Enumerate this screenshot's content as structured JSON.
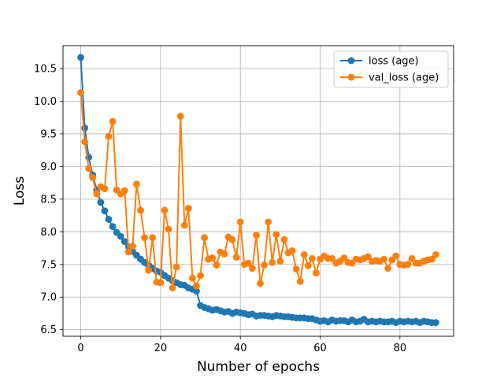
{
  "chart_data": {
    "type": "line",
    "xlabel": "Number of epochs",
    "ylabel": "Loss",
    "xlim": [
      -4.45,
      93.45
    ],
    "ylim": [
      6.4,
      10.85
    ],
    "xticks": [
      0,
      20,
      40,
      60,
      80
    ],
    "yticks": [
      6.5,
      7.0,
      7.5,
      8.0,
      8.5,
      9.0,
      9.5,
      10.0,
      10.5
    ],
    "ytick_labels": [
      "6.5",
      "7.0",
      "7.5",
      "8.0",
      "8.5",
      "9.0",
      "9.5",
      "10.0",
      "10.5"
    ],
    "grid": true,
    "legend": "top-right",
    "series": [
      {
        "name": "loss (age)",
        "color": "#1f77b4",
        "values": [
          10.67,
          9.59,
          9.14,
          8.87,
          8.64,
          8.45,
          8.32,
          8.19,
          8.08,
          7.99,
          7.93,
          7.85,
          7.77,
          7.7,
          7.64,
          7.58,
          7.53,
          7.49,
          7.44,
          7.4,
          7.38,
          7.33,
          7.29,
          7.25,
          7.22,
          7.19,
          7.18,
          7.14,
          7.12,
          7.09,
          6.87,
          6.84,
          6.82,
          6.8,
          6.81,
          6.79,
          6.77,
          6.78,
          6.75,
          6.77,
          6.76,
          6.75,
          6.73,
          6.74,
          6.71,
          6.72,
          6.72,
          6.71,
          6.7,
          6.72,
          6.71,
          6.7,
          6.7,
          6.69,
          6.68,
          6.68,
          6.68,
          6.67,
          6.67,
          6.65,
          6.63,
          6.64,
          6.62,
          6.65,
          6.63,
          6.64,
          6.64,
          6.62,
          6.65,
          6.62,
          6.63,
          6.66,
          6.62,
          6.63,
          6.62,
          6.63,
          6.62,
          6.62,
          6.63,
          6.61,
          6.63,
          6.62,
          6.63,
          6.62,
          6.63,
          6.61,
          6.63,
          6.62,
          6.61,
          6.61
        ]
      },
      {
        "name": "val_loss (age)",
        "color": "#ff7f0e",
        "values": [
          10.13,
          9.38,
          8.97,
          8.83,
          8.58,
          8.69,
          8.66,
          9.46,
          9.69,
          8.64,
          8.58,
          8.63,
          7.69,
          7.78,
          8.73,
          8.33,
          7.91,
          7.41,
          7.91,
          7.23,
          7.22,
          8.33,
          8.04,
          7.14,
          7.46,
          9.77,
          8.1,
          8.36,
          7.29,
          7.17,
          7.33,
          7.91,
          7.58,
          7.6,
          7.49,
          7.69,
          7.66,
          7.92,
          7.88,
          7.61,
          8.15,
          7.5,
          7.52,
          7.44,
          7.95,
          7.21,
          7.49,
          8.15,
          7.53,
          7.96,
          7.55,
          7.88,
          7.68,
          7.71,
          7.43,
          7.24,
          7.65,
          7.48,
          7.59,
          7.37,
          7.58,
          7.63,
          7.59,
          7.59,
          7.52,
          7.55,
          7.6,
          7.53,
          7.52,
          7.58,
          7.57,
          7.59,
          7.62,
          7.55,
          7.56,
          7.55,
          7.58,
          7.44,
          7.57,
          7.63,
          7.5,
          7.49,
          7.5,
          7.59,
          7.52,
          7.52,
          7.55,
          7.57,
          7.58,
          7.65
        ]
      }
    ]
  }
}
